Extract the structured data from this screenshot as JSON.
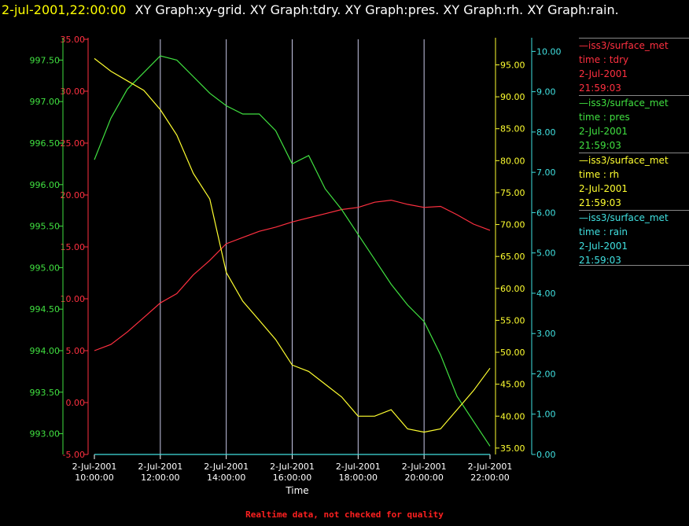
{
  "header": {
    "date_label": "2-jul-2001,22:00:00",
    "graphs_label": "XY Graph:xy-grid.  XY Graph:tdry.  XY Graph:pres.  XY Graph:rh.  XY Graph:rain."
  },
  "footer_note": "Realtime data, not checked for quality",
  "chart_data": {
    "type": "line",
    "xlabel": "Time",
    "x_ticks": [
      {
        "date": "2-Jul-2001",
        "time": "10:00:00"
      },
      {
        "date": "2-Jul-2001",
        "time": "12:00:00"
      },
      {
        "date": "2-Jul-2001",
        "time": "14:00:00"
      },
      {
        "date": "2-Jul-2001",
        "time": "16:00:00"
      },
      {
        "date": "2-Jul-2001",
        "time": "18:00:00"
      },
      {
        "date": "2-Jul-2001",
        "time": "20:00:00"
      },
      {
        "date": "2-Jul-2001",
        "time": "22:00:00"
      }
    ],
    "xlim": [
      "2001-07-02T10:00:00",
      "2001-07-02T22:00:00"
    ],
    "grid": "vertical",
    "axes": [
      {
        "id": "tdry",
        "color": "#ff3040",
        "ylim": [
          -5,
          35
        ],
        "ticks": [
          "-5.00",
          "0.00",
          "5.00",
          "10.00",
          "15.00",
          "20.00",
          "25.00",
          "30.00",
          "35.00"
        ]
      },
      {
        "id": "pres",
        "color": "#40e040",
        "ylim": [
          992.75,
          997.75
        ],
        "ticks": [
          "993.00",
          "993.50",
          "994.00",
          "994.50",
          "995.00",
          "995.50",
          "996.00",
          "996.50",
          "997.00",
          "997.50"
        ]
      },
      {
        "id": "rh",
        "color": "#ffff30",
        "ylim": [
          34,
          99
        ],
        "ticks": [
          "35.00",
          "40.00",
          "45.00",
          "50.00",
          "55.00",
          "60.00",
          "65.00",
          "70.00",
          "75.00",
          "80.00",
          "85.00",
          "90.00",
          "95.00"
        ]
      },
      {
        "id": "rain",
        "color": "#40e0e0",
        "ylim": [
          0,
          10.3
        ],
        "ticks": [
          "0.00",
          "1.00",
          "2.00",
          "3.00",
          "4.00",
          "5.00",
          "6.00",
          "7.00",
          "8.00",
          "9.00",
          "10.00"
        ]
      }
    ],
    "series": [
      {
        "axis": "tdry",
        "color": "#ff3040",
        "x": [
          "10:00",
          "10:30",
          "11:00",
          "11:30",
          "12:00",
          "12:30",
          "13:00",
          "13:30",
          "14:00",
          "14:30",
          "15:00",
          "15:30",
          "16:00",
          "16:30",
          "17:00",
          "17:30",
          "18:00",
          "18:30",
          "19:00",
          "19:30",
          "20:00",
          "20:30",
          "21:00",
          "21:30",
          "22:00"
        ],
        "y": [
          5.0,
          5.6,
          6.8,
          8.2,
          9.6,
          10.5,
          12.3,
          13.7,
          15.3,
          15.9,
          16.5,
          16.9,
          17.4,
          17.8,
          18.2,
          18.6,
          18.8,
          19.3,
          19.5,
          19.1,
          18.8,
          18.9,
          18.1,
          17.2,
          16.6
        ]
      },
      {
        "axis": "pres",
        "color": "#40e040",
        "x": [
          "10:00",
          "10:30",
          "11:00",
          "11:30",
          "12:00",
          "12:30",
          "13:00",
          "13:30",
          "14:00",
          "14:30",
          "15:00",
          "15:30",
          "16:00",
          "16:30",
          "17:00",
          "17:30",
          "18:00",
          "18:30",
          "19:00",
          "19:30",
          "20:00",
          "20:30",
          "21:00",
          "21:30",
          "22:00"
        ],
        "y": [
          996.3,
          996.8,
          997.15,
          997.35,
          997.55,
          997.5,
          997.3,
          997.1,
          996.95,
          996.85,
          996.85,
          996.65,
          996.25,
          996.35,
          995.95,
          995.7,
          995.4,
          995.1,
          994.8,
          994.55,
          994.35,
          993.95,
          993.45,
          993.15,
          992.85
        ]
      },
      {
        "axis": "rh",
        "color": "#ffff30",
        "x": [
          "10:00",
          "10:30",
          "11:00",
          "11:30",
          "12:00",
          "12:30",
          "13:00",
          "13:30",
          "14:00",
          "14:30",
          "15:00",
          "15:30",
          "16:00",
          "16:30",
          "17:00",
          "17:30",
          "18:00",
          "18:30",
          "19:00",
          "19:30",
          "20:00",
          "20:30",
          "21:00",
          "21:30",
          "22:00"
        ],
        "y": [
          96.0,
          94.0,
          92.5,
          91.0,
          88.0,
          84.0,
          78.0,
          74.0,
          62.5,
          58.0,
          55.0,
          52.0,
          48.0,
          47.0,
          45.0,
          43.0,
          40.0,
          40.0,
          41.0,
          38.0,
          37.5,
          38.0,
          41.0,
          44.0,
          47.5
        ]
      },
      {
        "axis": "rain",
        "color": "#40e0e0",
        "x": [
          "10:00",
          "22:00"
        ],
        "y": [
          0.0,
          0.0
        ]
      }
    ],
    "legend": {
      "placement": "right",
      "entries": [
        {
          "color": "#ff3040",
          "lines": [
            "—iss3/surface_met",
            "time : tdry",
            "2-Jul-2001",
            "21:59:03"
          ]
        },
        {
          "color": "#40e040",
          "lines": [
            "—iss3/surface_met",
            "time : pres",
            "2-Jul-2001",
            "21:59:03"
          ]
        },
        {
          "color": "#ffff30",
          "lines": [
            "—iss3/surface_met",
            "time : rh",
            "2-Jul-2001",
            "21:59:03"
          ]
        },
        {
          "color": "#40e0e0",
          "lines": [
            "—iss3/surface_met",
            "time : rain",
            "2-Jul-2001",
            "21:59:03"
          ]
        }
      ]
    }
  }
}
